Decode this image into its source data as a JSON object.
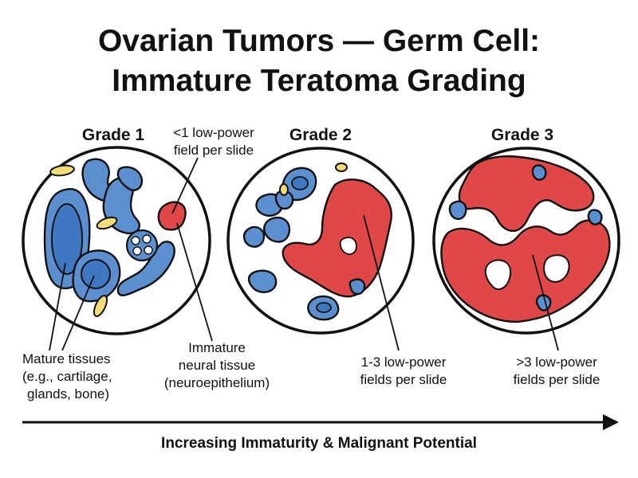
{
  "title": {
    "line1": "Ovarian Tumors — Germ Cell:",
    "line2": "Immature Teratoma Grading"
  },
  "panels": [
    {
      "grade": "Grade 1",
      "callout": [
        "<1 low-power",
        "field per slide"
      ],
      "immature_share": "<1 low-power field per slide"
    },
    {
      "grade": "Grade 2",
      "callout": [
        "1-3 low-power",
        "fields per slide"
      ],
      "immature_share": "1-3 low-power fields per slide"
    },
    {
      "grade": "Grade 3",
      "callout": [
        ">3 low-power",
        "fields per slide"
      ],
      "immature_share": ">3 low-power fields per slide"
    }
  ],
  "legend": {
    "mature": [
      "Mature tissues",
      "(e.g., cartilage,",
      "glands, bone)"
    ],
    "immature": [
      "Immature",
      "neural tissue",
      "(neuroepithelium)"
    ]
  },
  "axis": {
    "label": "Increasing Immaturity & Malignant Potential",
    "direction": "left-to-right arrow"
  },
  "colors": {
    "mature_fill": "#5b8fd0",
    "mature_inner": "#3f77c2",
    "immature_fill": "#e04848",
    "cartilage_fill": "#f3dc78",
    "outline": "#111111",
    "background": "#ffffff"
  }
}
